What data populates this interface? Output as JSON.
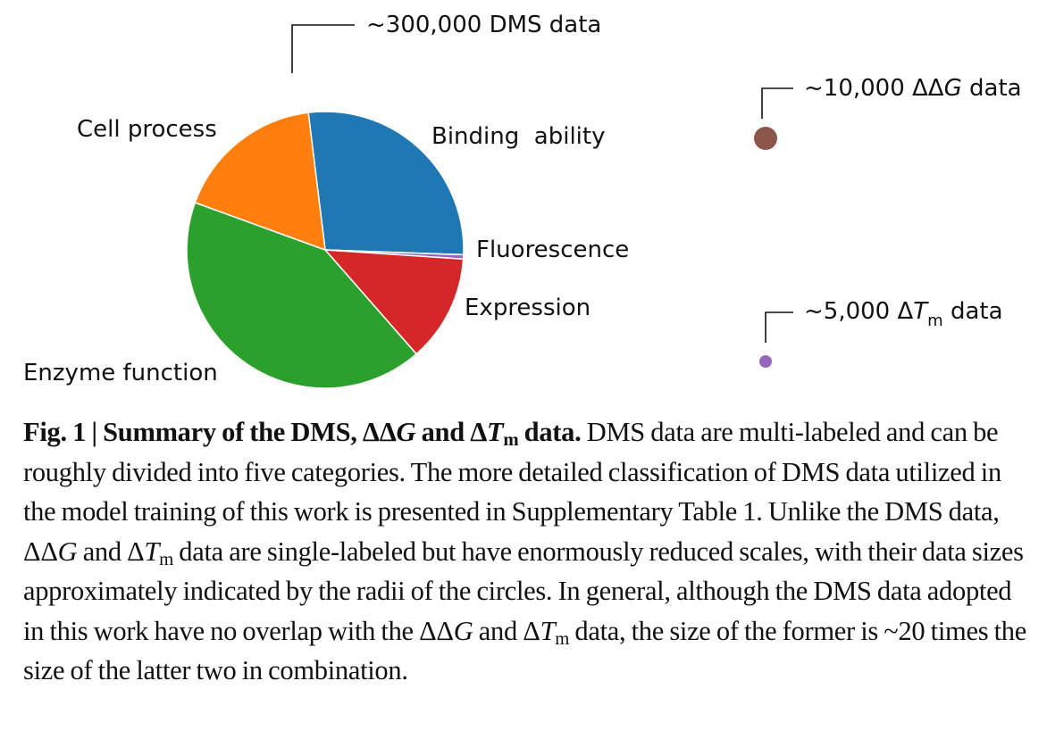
{
  "chart_data": {
    "type": "pie",
    "title": "~300,000 DMS data",
    "slices": [
      {
        "label": "Binding  ability",
        "value": 27.5,
        "color": "#1f77b4"
      },
      {
        "label": "Fluorescence",
        "value": 0.5,
        "color": "#9467bd"
      },
      {
        "label": "Expression",
        "value": 12.5,
        "color": "#d62728"
      },
      {
        "label": "Enzyme function",
        "value": 42.0,
        "color": "#2ca02c"
      },
      {
        "label": "Cell process",
        "value": 17.5,
        "color": "#ff7f0e"
      }
    ],
    "bubbles": [
      {
        "label_prefix": "~10,000 ΔΔ",
        "label_italic": "G",
        "label_sub": "",
        "label_suffix": " data",
        "value": 10000,
        "color": "#8c564b"
      },
      {
        "label_prefix": "~5,000 Δ",
        "label_italic": "T",
        "label_sub": "m",
        "label_suffix": " data",
        "value": 5000,
        "color": "#9467bd"
      }
    ]
  },
  "caption": {
    "fig_label": "Fig. 1",
    "separator": " | ",
    "title_1": "Summary of the DMS, ΔΔ",
    "title_g": "G",
    "title_2": " and Δ",
    "title_t": "T",
    "title_m": "m",
    "title_3": " data.",
    "body_1": " DMS data are multi-labeled and can be roughly divided into five categories. The more detailed classification of DMS data utilized in the model training of this work is presented in Supplementary Table 1. Unlike the DMS data, ΔΔ",
    "g1": "G",
    "body_2": " and Δ",
    "t1": "T",
    "m1": "m",
    "body_3": " data are single-labeled but have enormously reduced scales, with their data sizes approximately indicated by the radii of the circles. In general, although the DMS data adopted in this work have no overlap with the ΔΔ",
    "g2": "G",
    "body_4": " and Δ",
    "t2": "T",
    "m2": "m",
    "body_5": " data, the size of the former is ~20 times the size of the latter two in combination."
  }
}
